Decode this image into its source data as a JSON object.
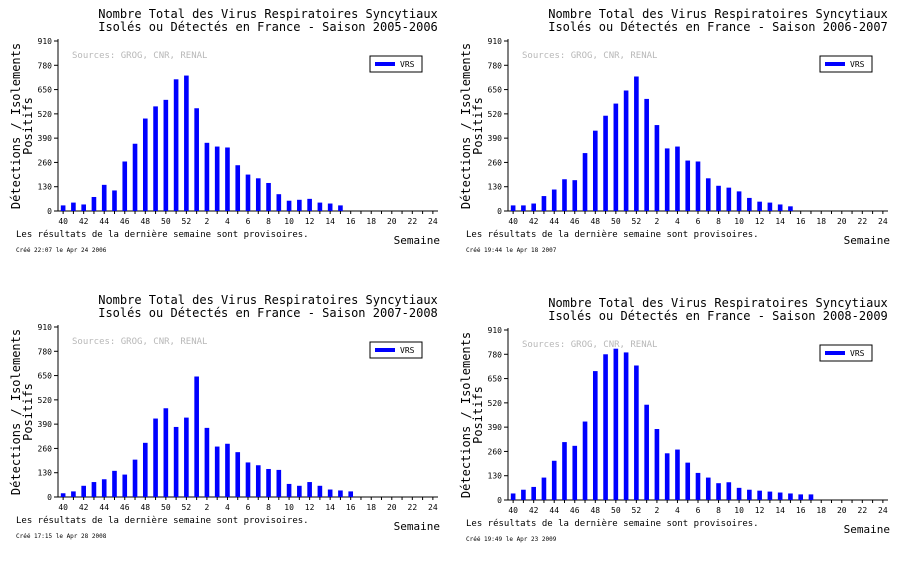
{
  "common": {
    "ylabel_line1": "Détections / Isolements",
    "ylabel_line2": "Positifs",
    "sources": "Sources: GROG, CNR, RENAL",
    "legend": "VRS",
    "note": "Les résultats de la dernière semaine sont provisoires.",
    "xlabel": "Semaine",
    "series_color": "#0000ff"
  },
  "chart_data": [
    {
      "type": "bar",
      "title_line1": "Nombre Total des Virus Respiratoires Syncytiaux",
      "title_line2": "Isolés ou Détectés en France - Saison 2005-2006",
      "created": "Créé 22:07 le Apr 24 2006",
      "ylim": [
        0,
        910
      ],
      "yticks": [
        0,
        130,
        260,
        390,
        520,
        650,
        780,
        910
      ],
      "xticks": [
        "40",
        "42",
        "44",
        "46",
        "48",
        "50",
        "52",
        "2",
        "4",
        "6",
        "8",
        "10",
        "12",
        "14",
        "16",
        "18",
        "20",
        "22",
        "24"
      ],
      "weeks": [
        "40",
        "41",
        "42",
        "43",
        "44",
        "45",
        "46",
        "47",
        "48",
        "49",
        "50",
        "51",
        "52",
        "1",
        "2",
        "3",
        "4",
        "5",
        "6",
        "7",
        "8",
        "9",
        "10",
        "11",
        "12",
        "13",
        "14",
        "15",
        "16",
        "17",
        "18",
        "19",
        "20",
        "21",
        "22",
        "23",
        "24"
      ],
      "series": [
        {
          "name": "VRS",
          "values": [
            30,
            45,
            35,
            75,
            140,
            110,
            265,
            360,
            495,
            560,
            595,
            705,
            725,
            550,
            365,
            345,
            340,
            245,
            195,
            175,
            150,
            90,
            55,
            60,
            65,
            45,
            40,
            30,
            null,
            null,
            null,
            null,
            null,
            null,
            null,
            null,
            null
          ]
        }
      ]
    },
    {
      "type": "bar",
      "title_line1": "Nombre Total des Virus Respiratoires Syncytiaux",
      "title_line2": "Isolés ou Détectés en France - Saison 2006-2007",
      "created": "Créé 19:44 le Apr 18 2007",
      "ylim": [
        0,
        910
      ],
      "yticks": [
        0,
        130,
        260,
        390,
        520,
        650,
        780,
        910
      ],
      "xticks": [
        "40",
        "42",
        "44",
        "46",
        "48",
        "50",
        "52",
        "2",
        "4",
        "6",
        "8",
        "10",
        "12",
        "14",
        "16",
        "18",
        "20",
        "22",
        "24"
      ],
      "weeks": [
        "40",
        "41",
        "42",
        "43",
        "44",
        "45",
        "46",
        "47",
        "48",
        "49",
        "50",
        "51",
        "52",
        "1",
        "2",
        "3",
        "4",
        "5",
        "6",
        "7",
        "8",
        "9",
        "10",
        "11",
        "12",
        "13",
        "14",
        "15",
        "16",
        "17",
        "18",
        "19",
        "20",
        "21",
        "22",
        "23",
        "24"
      ],
      "series": [
        {
          "name": "VRS",
          "values": [
            30,
            30,
            40,
            80,
            115,
            170,
            165,
            310,
            430,
            510,
            575,
            645,
            720,
            600,
            460,
            335,
            345,
            270,
            265,
            175,
            135,
            125,
            105,
            70,
            50,
            45,
            35,
            25,
            null,
            null,
            null,
            null,
            null,
            null,
            null,
            null,
            null
          ]
        }
      ]
    },
    {
      "type": "bar",
      "title_line1": "Nombre Total des Virus Respiratoires Syncytiaux",
      "title_line2": "Isolés ou Détectés en France - Saison 2007-2008",
      "created": "Créé 17:15 le Apr 28 2008",
      "ylim": [
        0,
        910
      ],
      "yticks": [
        0,
        130,
        260,
        390,
        520,
        650,
        780,
        910
      ],
      "xticks": [
        "40",
        "42",
        "44",
        "46",
        "48",
        "50",
        "52",
        "2",
        "4",
        "6",
        "8",
        "10",
        "12",
        "14",
        "16",
        "18",
        "20",
        "22",
        "24"
      ],
      "weeks": [
        "40",
        "41",
        "42",
        "43",
        "44",
        "45",
        "46",
        "47",
        "48",
        "49",
        "50",
        "51",
        "52",
        "1",
        "2",
        "3",
        "4",
        "5",
        "6",
        "7",
        "8",
        "9",
        "10",
        "11",
        "12",
        "13",
        "14",
        "15",
        "16",
        "17",
        "18",
        "19",
        "20",
        "21",
        "22",
        "23",
        "24"
      ],
      "series": [
        {
          "name": "VRS",
          "values": [
            20,
            30,
            60,
            80,
            95,
            140,
            120,
            200,
            290,
            420,
            475,
            375,
            425,
            645,
            370,
            270,
            285,
            240,
            185,
            170,
            150,
            145,
            70,
            60,
            80,
            60,
            40,
            35,
            30,
            null,
            null,
            null,
            null,
            null,
            null,
            null,
            null
          ]
        }
      ]
    },
    {
      "type": "bar",
      "title_line1": "Nombre Total des Virus Respiratoires Syncytiaux",
      "title_line2": "Isolés ou Détectés en France - Saison 2008-2009",
      "created": "Créé 19:49 le Apr 23 2009",
      "ylim": [
        0,
        910
      ],
      "yticks": [
        0,
        130,
        260,
        390,
        520,
        650,
        780,
        910
      ],
      "xticks": [
        "40",
        "42",
        "44",
        "46",
        "48",
        "50",
        "52",
        "2",
        "4",
        "6",
        "8",
        "10",
        "12",
        "14",
        "16",
        "18",
        "20",
        "22",
        "24"
      ],
      "weeks": [
        "40",
        "41",
        "42",
        "43",
        "44",
        "45",
        "46",
        "47",
        "48",
        "49",
        "50",
        "51",
        "52",
        "1",
        "2",
        "3",
        "4",
        "5",
        "6",
        "7",
        "8",
        "9",
        "10",
        "11",
        "12",
        "13",
        "14",
        "15",
        "16",
        "17",
        "18",
        "19",
        "20",
        "21",
        "22",
        "23",
        "24"
      ],
      "series": [
        {
          "name": "VRS",
          "values": [
            35,
            55,
            70,
            120,
            210,
            310,
            290,
            420,
            690,
            780,
            810,
            790,
            720,
            510,
            380,
            250,
            270,
            200,
            145,
            120,
            90,
            95,
            65,
            55,
            50,
            45,
            40,
            35,
            30,
            30,
            null,
            null,
            null,
            null,
            null,
            null,
            null
          ]
        }
      ]
    }
  ]
}
